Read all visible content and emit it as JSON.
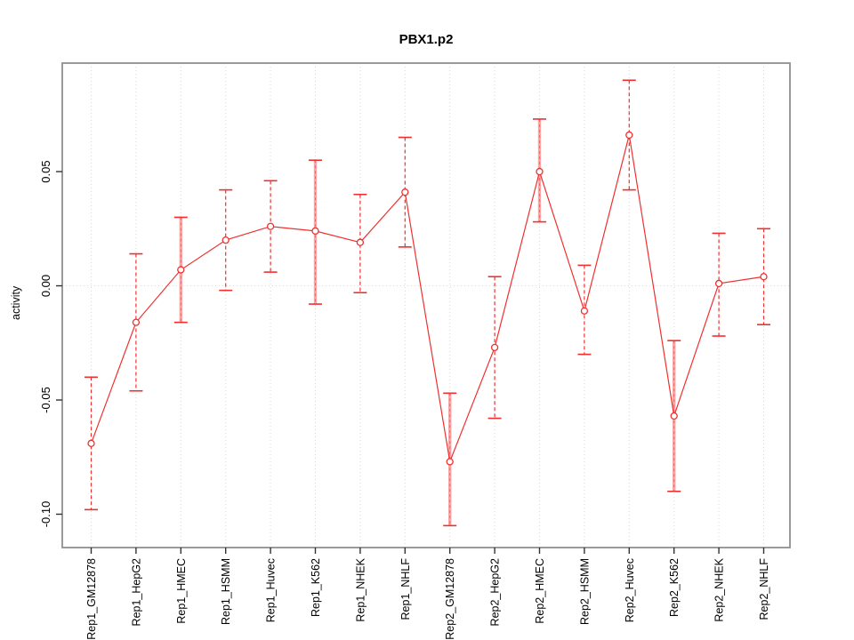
{
  "figure": {
    "title": "PBX1.p2",
    "ylabel": "activity"
  },
  "chart_data": {
    "type": "line",
    "title": "PBX1.p2",
    "xlabel": "",
    "ylabel": "activity",
    "categories": [
      "Rep1_GM12878",
      "Rep1_HepG2",
      "Rep1_HMEC",
      "Rep1_HSMM",
      "Rep1_Huvec",
      "Rep1_K562",
      "Rep1_NHEK",
      "Rep1_NHLF",
      "Rep2_GM12878",
      "Rep2_HepG2",
      "Rep2_HMEC",
      "Rep2_HSMM",
      "Rep2_Huvec",
      "Rep2_K562",
      "Rep2_NHEK",
      "Rep2_NHLF"
    ],
    "series": [
      {
        "name": "activity",
        "values": [
          -0.069,
          -0.016,
          0.007,
          0.02,
          0.026,
          0.024,
          0.019,
          0.041,
          -0.077,
          -0.027,
          0.05,
          -0.011,
          0.066,
          -0.057,
          0.001,
          0.004
        ],
        "err_low": [
          -0.098,
          -0.046,
          -0.016,
          -0.002,
          0.006,
          -0.008,
          -0.003,
          0.017,
          -0.105,
          -0.058,
          0.028,
          -0.03,
          0.042,
          -0.09,
          -0.022,
          -0.017
        ],
        "err_high": [
          -0.04,
          0.014,
          0.03,
          0.042,
          0.046,
          0.055,
          0.04,
          0.065,
          -0.047,
          0.004,
          0.073,
          0.009,
          0.09,
          -0.024,
          0.023,
          0.025
        ]
      }
    ],
    "error_bar_style": [
      "dashed",
      "dashed",
      "pink-solid",
      "dashed",
      "dashed",
      "pink-solid",
      "dashed",
      "dashed",
      "pink-solid",
      "dashed",
      "pink-solid",
      "dashed",
      "dashed",
      "pink-solid",
      "dashed",
      "dashed"
    ],
    "marker": "open-circle",
    "ytick_values": [
      0.05,
      0.0,
      -0.05,
      -0.1
    ],
    "ytick_labels": [
      "0.05",
      "0.00",
      "-0.05",
      "-0.10"
    ],
    "ylim": [
      -0.1146,
      0.0975
    ],
    "grid": {
      "vertical_per_category": true,
      "horizontal_at_zero": true,
      "style": "dotted"
    },
    "legend": "none",
    "colors": {
      "line": "#f03030",
      "marker_fill": "#ffffff",
      "error_bar_pink": "#f9a6a6",
      "grid": "#d9d9d9",
      "box": "#8f8f8f",
      "tick": "#333333",
      "text": "#000000",
      "background": "#ffffff"
    }
  }
}
